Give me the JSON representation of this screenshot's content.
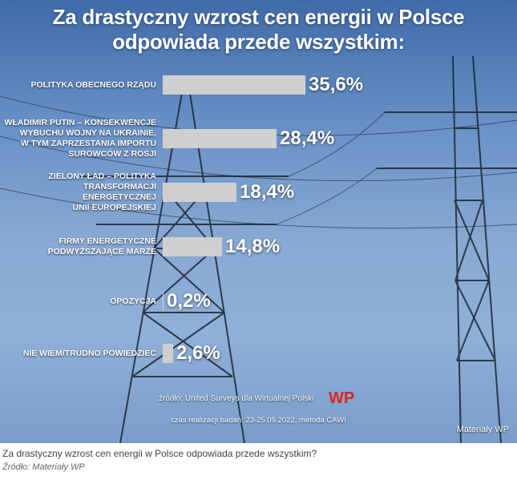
{
  "chart_data": {
    "type": "bar",
    "orientation": "horizontal",
    "title": "Za drastyczny wzrost cen energii w Polsce odpowiada przede wszystkim:",
    "categories": [
      "POLITYKA OBECNEGO RZĄDU",
      "WŁADIMIR PUTIN – KONSEKWENCJE WYBUCHU WOJNY NA UKRAINIE, W TYM ZAPRZESTANIA IMPORTU SUROWCÓW Z ROSJI",
      "ZIELONY ŁAD – POLITYKA TRANSFORMACJI ENERGETYCZNEJ UNII EUROPEJSKIEJ",
      "FIRMY ENERGETYCZNE PODWYŻSZAJĄCE MARŻE",
      "OPOZYCJA",
      "NIE WIEM/TRUDNO POWIEDZIEĆ"
    ],
    "category_lines": [
      [
        "POLITYKA OBECNEGO RZĄDU"
      ],
      [
        "WŁADIMIR PUTIN – KONSEKWENCJE",
        "WYBUCHU WOJNY NA UKRAINIE,",
        "W TYM ZAPRZESTANIA IMPORTU",
        "SUROWCÓW Z ROSJI"
      ],
      [
        "ZIELONY ŁAD – POLITYKA",
        "TRANSFORMACJI",
        "ENERGETYCZNEJ",
        "UNII EUROPEJSKIEJ"
      ],
      [
        "FIRMY ENERGETYCZNE",
        "PODWYŻSZAJĄCE MARŻE"
      ],
      [
        "OPOZYCJA"
      ],
      [
        "NIE WIEM/TRUDNO POWIEDZIEĆ"
      ]
    ],
    "values": [
      35.6,
      28.4,
      18.4,
      14.8,
      0.2,
      2.6
    ],
    "value_labels": [
      "35,6%",
      "28,4%",
      "18,4%",
      "14,8%",
      "0,2%",
      "2,6%"
    ],
    "xlim": [
      0,
      35.6
    ],
    "bar_color": "#cfcfcf",
    "grid": false,
    "legend": "none"
  },
  "source_text": "źródło: United Surveys dla Wirtualnej Polski",
  "period_text": "czas realizacji badań: 23-25.09.2022, metoda CAWI",
  "credit_text": "Materiały WP",
  "logo_text": "WP",
  "logo_color": "#e2231a",
  "caption": {
    "text": "Za drastyczny wzrost cen energii w Polsce odpowiada przede wszystkim?",
    "source": "Źródło: Materiały WP"
  }
}
